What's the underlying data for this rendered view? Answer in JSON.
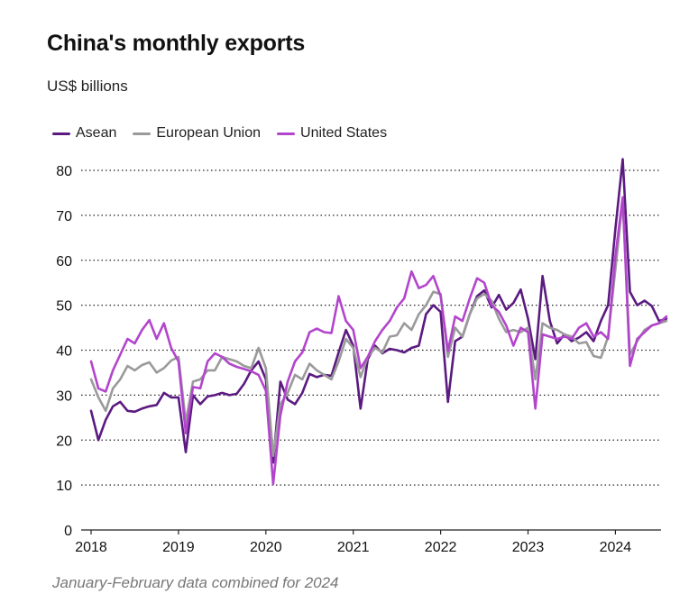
{
  "chart_data": {
    "type": "line",
    "title": "China's monthly exports",
    "subtitle": "US$ billions",
    "note": "January-February data combined for 2024",
    "x_tick_labels": [
      "2018",
      "2019",
      "2020",
      "2021",
      "2022",
      "2023",
      "2024"
    ],
    "y_ticks": [
      0,
      10,
      20,
      30,
      40,
      50,
      60,
      70,
      80
    ],
    "ylim": [
      0,
      80
    ],
    "grid": "horizontal dotted",
    "legend_position": "top-left",
    "series": [
      {
        "name": "Asean",
        "color": "#5b1a80",
        "points": [
          [
            "2018-01",
            26.5
          ],
          [
            "2018-02",
            20
          ],
          [
            "2018-03",
            24.5
          ],
          [
            "2018-04",
            27.5
          ],
          [
            "2018-05",
            28.5
          ],
          [
            "2018-06",
            26.5
          ],
          [
            "2018-07",
            26.3
          ],
          [
            "2018-08",
            27
          ],
          [
            "2018-09",
            27.5
          ],
          [
            "2018-10",
            27.8
          ],
          [
            "2018-11",
            30.5
          ],
          [
            "2018-12",
            29.5
          ],
          [
            "2019-01",
            29.5
          ],
          [
            "2019-02",
            17.3
          ],
          [
            "2019-03",
            30
          ],
          [
            "2019-04",
            28
          ],
          [
            "2019-05",
            29.7
          ],
          [
            "2019-06",
            30
          ],
          [
            "2019-07",
            30.5
          ],
          [
            "2019-08",
            30
          ],
          [
            "2019-09",
            30.3
          ],
          [
            "2019-10",
            32.5
          ],
          [
            "2019-11",
            35.5
          ],
          [
            "2019-12",
            37.5
          ],
          [
            "2020-01",
            33.5
          ],
          [
            "2020-02",
            15
          ],
          [
            "2020-03",
            33
          ],
          [
            "2020-04",
            29
          ],
          [
            "2020-05",
            28
          ],
          [
            "2020-06",
            30.5
          ],
          [
            "2020-07",
            34.7
          ],
          [
            "2020-08",
            34
          ],
          [
            "2020-09",
            34.5
          ],
          [
            "2020-10",
            34.3
          ],
          [
            "2020-11",
            39.5
          ],
          [
            "2020-12",
            44.5
          ],
          [
            "2021-01",
            41
          ],
          [
            "2021-02",
            27
          ],
          [
            "2021-03",
            38
          ],
          [
            "2021-04",
            41
          ],
          [
            "2021-05",
            39.3
          ],
          [
            "2021-06",
            40.3
          ],
          [
            "2021-07",
            40
          ],
          [
            "2021-08",
            39.5
          ],
          [
            "2021-09",
            40.5
          ],
          [
            "2021-10",
            41
          ],
          [
            "2021-11",
            48
          ],
          [
            "2021-12",
            50
          ],
          [
            "2022-01",
            48.5
          ],
          [
            "2022-02",
            28.5
          ],
          [
            "2022-03",
            42
          ],
          [
            "2022-04",
            43
          ],
          [
            "2022-05",
            48
          ],
          [
            "2022-06",
            52
          ],
          [
            "2022-07",
            53.3
          ],
          [
            "2022-08",
            49.5
          ],
          [
            "2022-09",
            52.3
          ],
          [
            "2022-10",
            49
          ],
          [
            "2022-11",
            50.5
          ],
          [
            "2022-12",
            53.5
          ],
          [
            "2023-01",
            47
          ],
          [
            "2023-02",
            38
          ],
          [
            "2023-03",
            56.5
          ],
          [
            "2023-04",
            46.5
          ],
          [
            "2023-05",
            41.5
          ],
          [
            "2023-06",
            43.5
          ],
          [
            "2023-07",
            42
          ],
          [
            "2023-08",
            42.8
          ],
          [
            "2023-09",
            44
          ],
          [
            "2023-10",
            42
          ],
          [
            "2023-11",
            46.5
          ],
          [
            "2023-12",
            50
          ],
          [
            "2024-01",
            67
          ],
          [
            "2024-02",
            82.5
          ],
          [
            "2024-03",
            53
          ],
          [
            "2024-04",
            50
          ],
          [
            "2024-05",
            51
          ],
          [
            "2024-06",
            49.8
          ],
          [
            "2024-07",
            46.5
          ],
          [
            "2024-08",
            47
          ]
        ]
      },
      {
        "name": "European Union",
        "color": "#9a9a9a",
        "points": [
          [
            "2018-01",
            33.5
          ],
          [
            "2018-02",
            29.5
          ],
          [
            "2018-03",
            26.5
          ],
          [
            "2018-04",
            31.5
          ],
          [
            "2018-05",
            33.5
          ],
          [
            "2018-06",
            36.5
          ],
          [
            "2018-07",
            35.5
          ],
          [
            "2018-08",
            36.7
          ],
          [
            "2018-09",
            37.3
          ],
          [
            "2018-10",
            35
          ],
          [
            "2018-11",
            36
          ],
          [
            "2018-12",
            37.7
          ],
          [
            "2019-01",
            38.5
          ],
          [
            "2019-02",
            24
          ],
          [
            "2019-03",
            33
          ],
          [
            "2019-04",
            33.5
          ],
          [
            "2019-05",
            35.5
          ],
          [
            "2019-06",
            35.5
          ],
          [
            "2019-07",
            38.5
          ],
          [
            "2019-08",
            38
          ],
          [
            "2019-09",
            37.5
          ],
          [
            "2019-10",
            36.5
          ],
          [
            "2019-11",
            36
          ],
          [
            "2019-12",
            40.5
          ],
          [
            "2020-01",
            36
          ],
          [
            "2020-02",
            16.5
          ],
          [
            "2020-03",
            28
          ],
          [
            "2020-04",
            30.5
          ],
          [
            "2020-05",
            34.5
          ],
          [
            "2020-06",
            33.5
          ],
          [
            "2020-07",
            37
          ],
          [
            "2020-08",
            35.5
          ],
          [
            "2020-09",
            34.5
          ],
          [
            "2020-10",
            33.5
          ],
          [
            "2020-11",
            37.5
          ],
          [
            "2020-12",
            42.5
          ],
          [
            "2021-01",
            40.5
          ],
          [
            "2021-02",
            34
          ],
          [
            "2021-03",
            38.5
          ],
          [
            "2021-04",
            40.5
          ],
          [
            "2021-05",
            39.5
          ],
          [
            "2021-06",
            43
          ],
          [
            "2021-07",
            43.3
          ],
          [
            "2021-08",
            46
          ],
          [
            "2021-09",
            44.5
          ],
          [
            "2021-10",
            48
          ],
          [
            "2021-11",
            50
          ],
          [
            "2021-12",
            53
          ],
          [
            "2022-01",
            52.5
          ],
          [
            "2022-02",
            38.5
          ],
          [
            "2022-03",
            45
          ],
          [
            "2022-04",
            43
          ],
          [
            "2022-05",
            48
          ],
          [
            "2022-06",
            51.5
          ],
          [
            "2022-07",
            52.5
          ],
          [
            "2022-08",
            51
          ],
          [
            "2022-09",
            47
          ],
          [
            "2022-10",
            44
          ],
          [
            "2022-11",
            44.5
          ],
          [
            "2022-12",
            44
          ],
          [
            "2023-01",
            45
          ],
          [
            "2023-02",
            33.5
          ],
          [
            "2023-03",
            46
          ],
          [
            "2023-04",
            45
          ],
          [
            "2023-05",
            44.5
          ],
          [
            "2023-06",
            43.5
          ],
          [
            "2023-07",
            43
          ],
          [
            "2023-08",
            41.5
          ],
          [
            "2023-09",
            41.8
          ],
          [
            "2023-10",
            38.7
          ],
          [
            "2023-11",
            38.3
          ],
          [
            "2023-12",
            43
          ],
          [
            "2024-01",
            58
          ],
          [
            "2024-02",
            73.5
          ],
          [
            "2024-03",
            39
          ],
          [
            "2024-04",
            42
          ],
          [
            "2024-05",
            44.5
          ],
          [
            "2024-06",
            45.5
          ],
          [
            "2024-07",
            46
          ],
          [
            "2024-08",
            46.5
          ]
        ]
      },
      {
        "name": "United States",
        "color": "#b245cc",
        "points": [
          [
            "2018-01",
            37.5
          ],
          [
            "2018-02",
            31.5
          ],
          [
            "2018-03",
            30.8
          ],
          [
            "2018-04",
            35.5
          ],
          [
            "2018-05",
            39
          ],
          [
            "2018-06",
            42.5
          ],
          [
            "2018-07",
            41.5
          ],
          [
            "2018-08",
            44.5
          ],
          [
            "2018-09",
            46.7
          ],
          [
            "2018-10",
            42.5
          ],
          [
            "2018-11",
            46
          ],
          [
            "2018-12",
            40.5
          ],
          [
            "2019-01",
            37.5
          ],
          [
            "2019-02",
            21.5
          ],
          [
            "2019-03",
            31.8
          ],
          [
            "2019-04",
            31.5
          ],
          [
            "2019-05",
            37.5
          ],
          [
            "2019-06",
            39.3
          ],
          [
            "2019-07",
            38.5
          ],
          [
            "2019-08",
            37
          ],
          [
            "2019-09",
            36.3
          ],
          [
            "2019-10",
            35.8
          ],
          [
            "2019-11",
            35.3
          ],
          [
            "2019-12",
            34.5
          ],
          [
            "2020-01",
            31
          ],
          [
            "2020-02",
            10.2
          ],
          [
            "2020-03",
            25.5
          ],
          [
            "2020-04",
            33
          ],
          [
            "2020-05",
            37.5
          ],
          [
            "2020-06",
            39.5
          ],
          [
            "2020-07",
            44
          ],
          [
            "2020-08",
            44.8
          ],
          [
            "2020-09",
            44
          ],
          [
            "2020-10",
            43.8
          ],
          [
            "2020-11",
            52
          ],
          [
            "2020-12",
            46.5
          ],
          [
            "2021-01",
            44.5
          ],
          [
            "2021-02",
            36
          ],
          [
            "2021-03",
            38.5
          ],
          [
            "2021-04",
            42
          ],
          [
            "2021-05",
            44.5
          ],
          [
            "2021-06",
            46.5
          ],
          [
            "2021-07",
            49.5
          ],
          [
            "2021-08",
            51.5
          ],
          [
            "2021-09",
            57.5
          ],
          [
            "2021-10",
            53.8
          ],
          [
            "2021-11",
            54.5
          ],
          [
            "2021-12",
            56.5
          ],
          [
            "2022-01",
            52
          ],
          [
            "2022-02",
            39.8
          ],
          [
            "2022-03",
            47.5
          ],
          [
            "2022-04",
            46.5
          ],
          [
            "2022-05",
            51.5
          ],
          [
            "2022-06",
            56
          ],
          [
            "2022-07",
            55
          ],
          [
            "2022-08",
            50
          ],
          [
            "2022-09",
            48.5
          ],
          [
            "2022-10",
            45.5
          ],
          [
            "2022-11",
            41
          ],
          [
            "2022-12",
            45
          ],
          [
            "2023-01",
            44
          ],
          [
            "2023-02",
            27
          ],
          [
            "2023-03",
            43.5
          ],
          [
            "2023-04",
            43
          ],
          [
            "2023-05",
            42.5
          ],
          [
            "2023-06",
            43
          ],
          [
            "2023-07",
            42.5
          ],
          [
            "2023-08",
            45
          ],
          [
            "2023-09",
            46
          ],
          [
            "2023-10",
            43
          ],
          [
            "2023-11",
            44
          ],
          [
            "2023-12",
            42.5
          ],
          [
            "2024-01",
            61
          ],
          [
            "2024-02",
            74
          ],
          [
            "2024-03",
            36.5
          ],
          [
            "2024-04",
            42.5
          ],
          [
            "2024-05",
            44
          ],
          [
            "2024-06",
            45.5
          ],
          [
            "2024-07",
            46
          ],
          [
            "2024-08",
            47.5
          ]
        ]
      }
    ]
  }
}
